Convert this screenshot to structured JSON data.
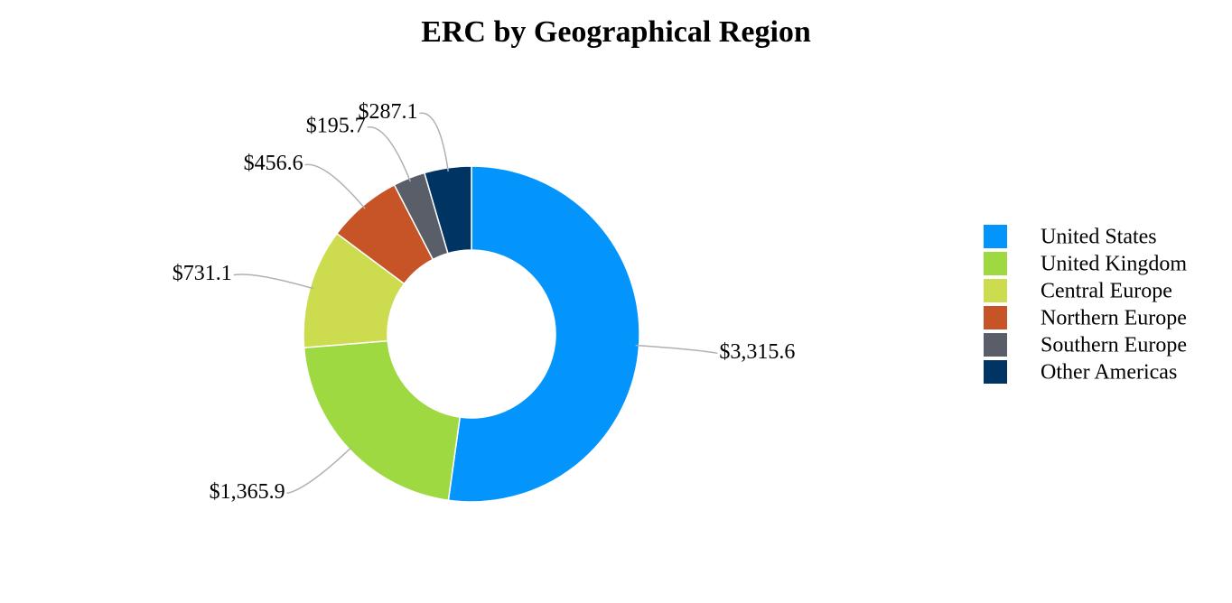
{
  "chart_data": {
    "type": "pie",
    "title": "ERC by Geographical Region",
    "categories": [
      "United States",
      "United Kingdom",
      "Central Europe",
      "Northern Europe",
      "Southern Europe",
      "Other Americas"
    ],
    "values": [
      3315.6,
      1365.9,
      731.1,
      456.6,
      195.7,
      287.1
    ],
    "value_labels": [
      "$3,315.6",
      "$1,365.9",
      "$731.1",
      "$456.6",
      "$195.7",
      "$287.1"
    ],
    "colors": [
      "#0394fc",
      "#9ed942",
      "#cddc4f",
      "#c65426",
      "#5a5e68",
      "#003463"
    ],
    "legend": "right"
  }
}
